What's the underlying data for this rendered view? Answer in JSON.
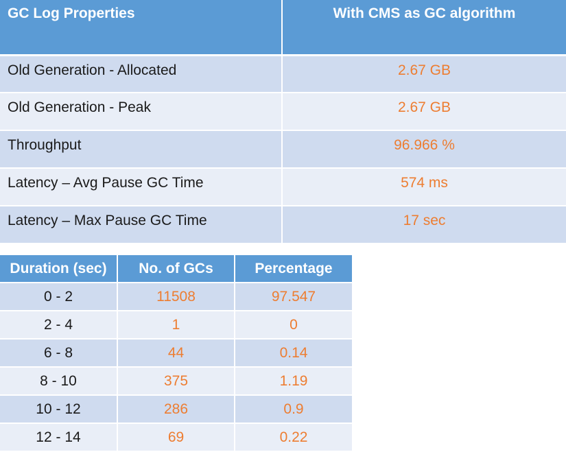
{
  "properties_table": {
    "headers": [
      "GC Log Properties",
      "With CMS as GC algorithm"
    ],
    "rows": [
      {
        "property": "Old Generation - Allocated",
        "value": "2.67 GB"
      },
      {
        "property": "Old Generation - Peak",
        "value": "2.67 GB"
      },
      {
        "property": "Throughput",
        "value": "96.966 %"
      },
      {
        "property": "Latency – Avg Pause GC Time",
        "value": "574 ms"
      },
      {
        "property": "Latency – Max Pause GC Time",
        "value": "17 sec"
      }
    ]
  },
  "distribution_table": {
    "headers": [
      "Duration (sec)",
      "No. of GCs",
      "Percentage"
    ],
    "rows": [
      {
        "duration": "0 - 2",
        "count": "11508",
        "percentage": "97.547"
      },
      {
        "duration": "2 - 4",
        "count": "1",
        "percentage": "0"
      },
      {
        "duration": "6 - 8",
        "count": "44",
        "percentage": "0.14"
      },
      {
        "duration": "8 - 10",
        "count": "375",
        "percentage": "1.19"
      },
      {
        "duration": "10 - 12",
        "count": "286",
        "percentage": "0.9"
      },
      {
        "duration": "12 - 14",
        "count": "69",
        "percentage": "0.22"
      }
    ]
  },
  "colors": {
    "header_bg": "#5b9bd5",
    "row_dark": "#cfdbef",
    "row_light": "#e9eef7",
    "value_text": "#ed7d31"
  }
}
